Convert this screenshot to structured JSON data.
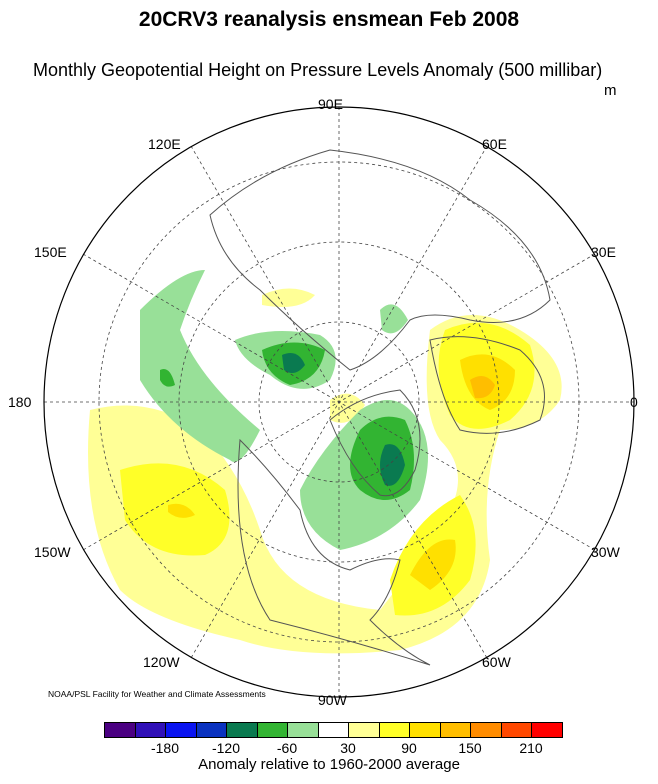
{
  "title": "20CRV3 reanalysis ensmean Feb 2008",
  "subtitle": "Monthly Geopotential Height on Pressure Levels Anomaly (500 millibar)",
  "units": "m",
  "credit": "NOAA/PSL Facility for Weather and Climate Assessments",
  "longitude_labels": {
    "e90": "90E",
    "e60": "60E",
    "e30": "30E",
    "zero": "0",
    "w30": "30W",
    "w60": "60W",
    "w90": "90W",
    "w120": "120W",
    "w150": "150W",
    "d180": "180",
    "e150": "150E",
    "e120": "120E"
  },
  "colorbar": {
    "colors": [
      "#4b0082",
      "#3010b8",
      "#0a14f0",
      "#0a32c0",
      "#0a7a50",
      "#32b432",
      "#98e098",
      "#ffffff",
      "#ffff96",
      "#ffff28",
      "#ffe000",
      "#ffbe00",
      "#ff8c00",
      "#ff4800",
      "#ff0000"
    ],
    "tick_labels": [
      "-180",
      "-120",
      "-60",
      "30",
      "90",
      "150",
      "210"
    ],
    "label": "Anomaly relative to 1960-2000 average"
  }
}
